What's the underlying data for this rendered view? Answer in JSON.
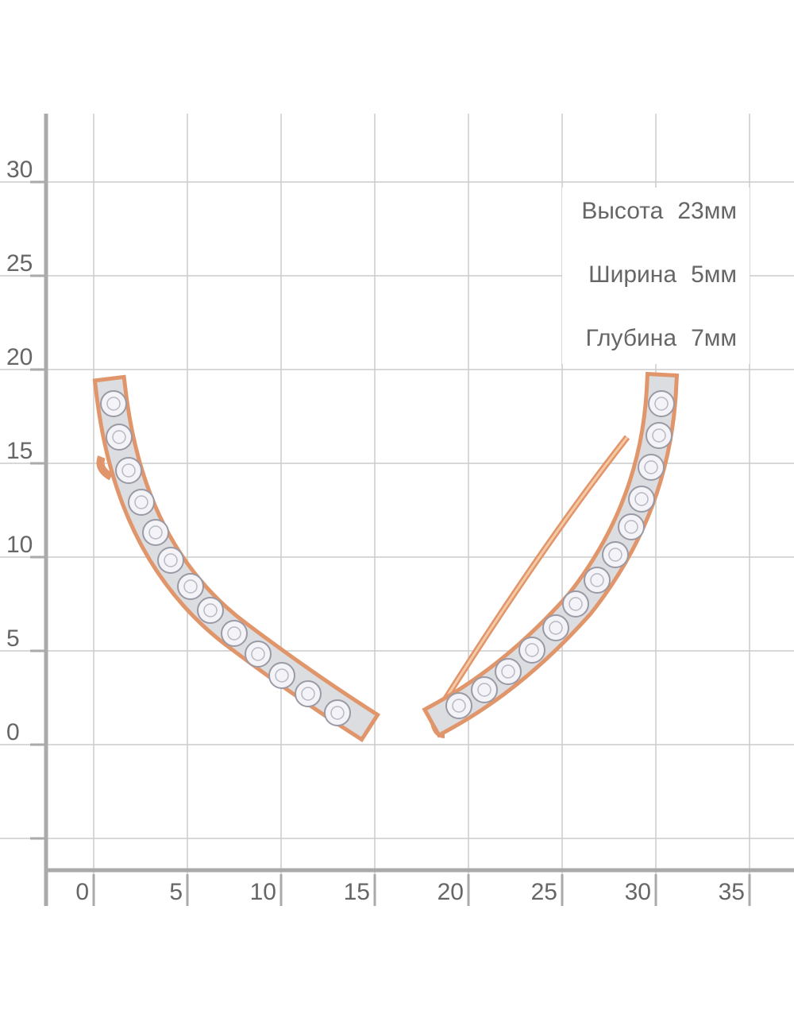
{
  "x_axis": {
    "labels": [
      "0",
      "5",
      "10",
      "15",
      "20",
      "25",
      "30",
      "35"
    ]
  },
  "y_axis": {
    "labels": [
      "0",
      "5",
      "10",
      "15",
      "20",
      "25",
      "30"
    ]
  },
  "dimensions": [
    {
      "label": "Высота",
      "value": "23мм"
    },
    {
      "label": "Ширина",
      "value": "5мм"
    },
    {
      "label": "Глубина",
      "value": "7мм"
    }
  ]
}
